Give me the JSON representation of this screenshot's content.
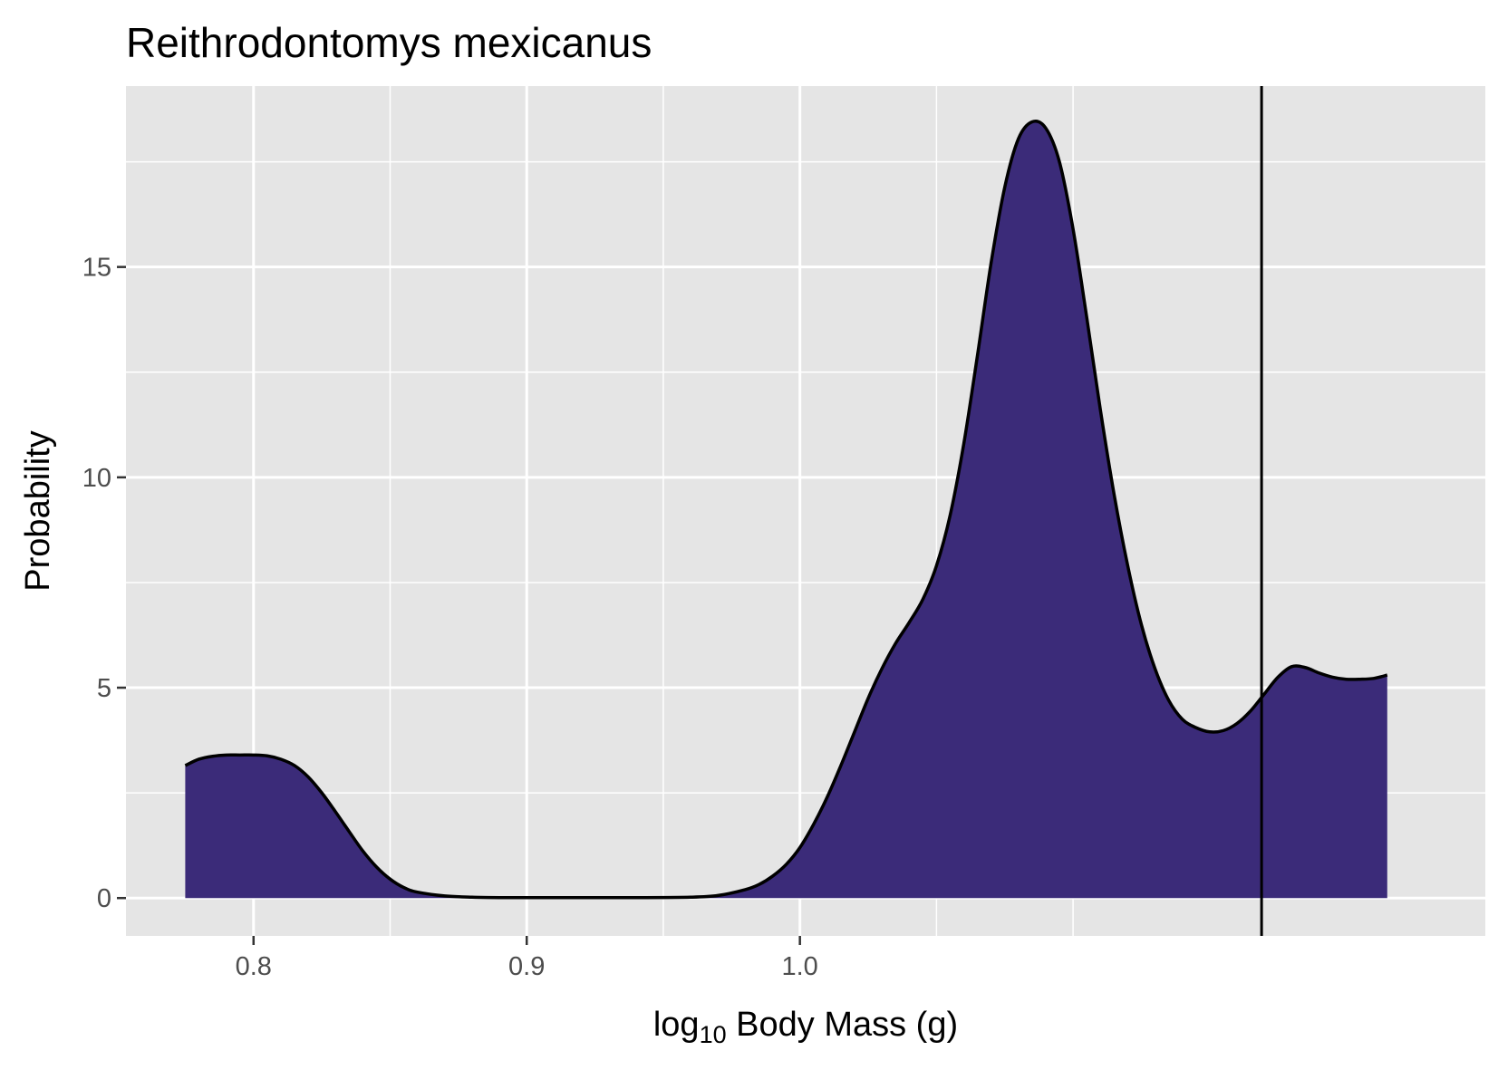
{
  "chart_data": {
    "type": "area",
    "title": "Reithrodontomys mexicanus",
    "xlabel": {
      "prefix": "log",
      "subscript": "10",
      "suffix": " Body Mass (g)"
    },
    "ylabel": "Probability",
    "xlim": [
      0.7533,
      1.2509
    ],
    "ylim": [
      -0.9,
      19.3
    ],
    "x_ticks": [
      0.8,
      0.9,
      1.0
    ],
    "x_tick_labels": [
      "0.8",
      "0.9",
      "1.0"
    ],
    "x_minor_gridlines": [
      0.85,
      0.95,
      1.05,
      1.1
    ],
    "y_ticks": [
      0,
      5,
      10,
      15
    ],
    "y_tick_labels": [
      "0",
      "5",
      "10",
      "15"
    ],
    "grid": true,
    "fill_color": "#3b2b79",
    "line_color": "#000000",
    "panel_background": "#e5e5e5",
    "gridline_color": "#ffffff",
    "vline_x": 1.169,
    "series": [
      {
        "x": [
          0.775,
          0.78,
          0.785,
          0.79,
          0.795,
          0.8,
          0.805,
          0.81,
          0.815,
          0.82,
          0.825,
          0.83,
          0.835,
          0.84,
          0.845,
          0.85,
          0.855,
          0.86,
          0.87,
          0.88,
          0.89,
          0.9,
          0.92,
          0.94,
          0.96,
          0.97,
          0.98,
          0.985,
          0.99,
          0.995,
          1.0,
          1.005,
          1.01,
          1.015,
          1.02,
          1.025,
          1.03,
          1.035,
          1.04,
          1.045,
          1.05,
          1.055,
          1.06,
          1.065,
          1.07,
          1.075,
          1.08,
          1.085,
          1.09,
          1.095,
          1.1,
          1.105,
          1.11,
          1.115,
          1.12,
          1.125,
          1.13,
          1.135,
          1.14,
          1.145,
          1.15,
          1.155,
          1.16,
          1.165,
          1.17,
          1.175,
          1.18,
          1.185,
          1.19,
          1.195,
          1.2,
          1.205,
          1.21,
          1.215
        ],
        "y": [
          3.15,
          3.3,
          3.37,
          3.4,
          3.4,
          3.4,
          3.38,
          3.3,
          3.15,
          2.88,
          2.5,
          2.05,
          1.58,
          1.12,
          0.74,
          0.45,
          0.25,
          0.14,
          0.05,
          0.02,
          0.01,
          0.01,
          0.01,
          0.01,
          0.02,
          0.06,
          0.2,
          0.32,
          0.52,
          0.8,
          1.2,
          1.75,
          2.4,
          3.15,
          3.95,
          4.75,
          5.45,
          6.05,
          6.55,
          7.1,
          7.9,
          9.1,
          10.8,
          12.9,
          15.1,
          16.9,
          18.05,
          18.45,
          18.3,
          17.5,
          15.9,
          13.8,
          11.6,
          9.6,
          7.9,
          6.5,
          5.45,
          4.7,
          4.25,
          4.05,
          3.95,
          3.98,
          4.15,
          4.45,
          4.85,
          5.25,
          5.5,
          5.48,
          5.35,
          5.25,
          5.2,
          5.2,
          5.22,
          5.3
        ]
      }
    ]
  }
}
